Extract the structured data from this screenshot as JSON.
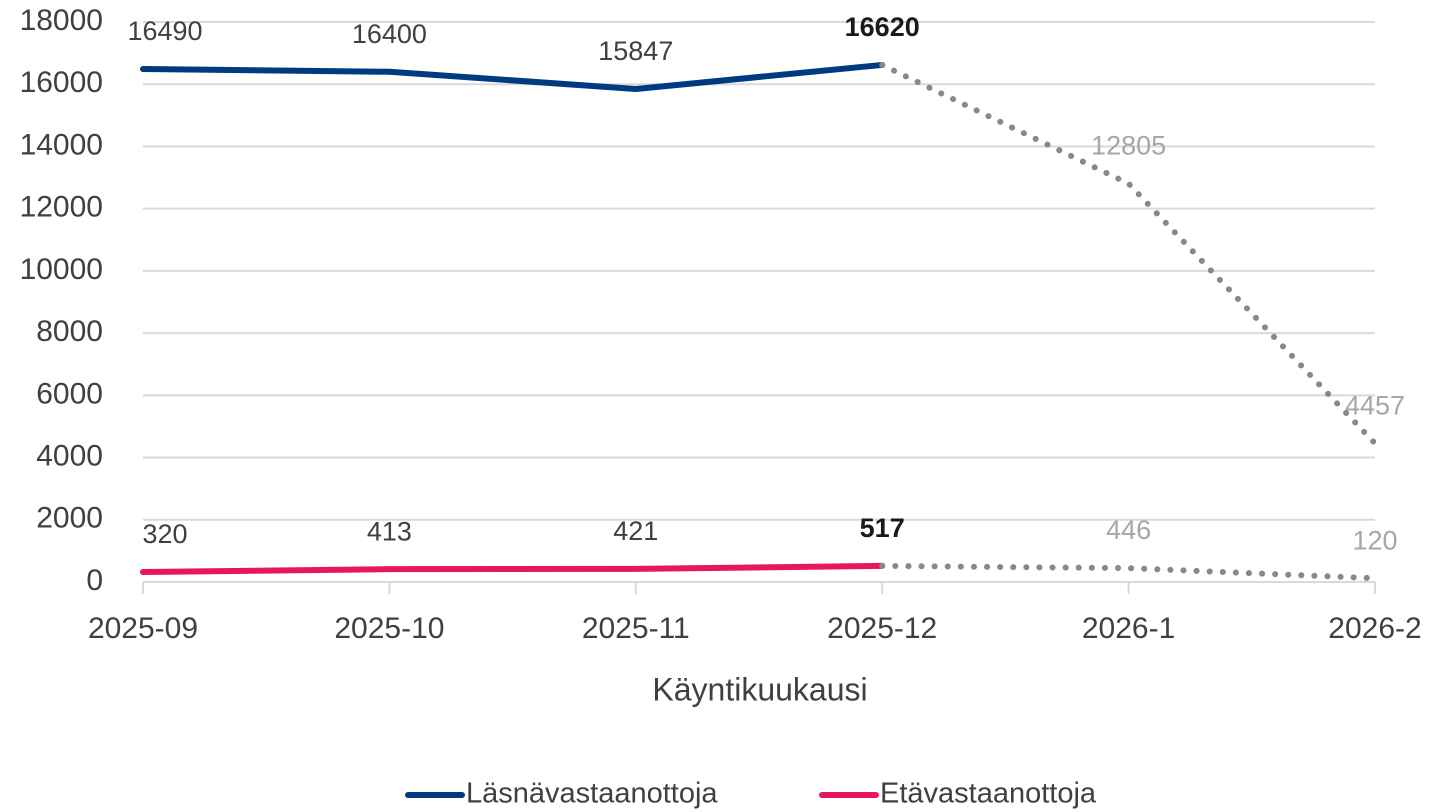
{
  "chart_data": {
    "type": "line",
    "x_label": "Käyntikuukausi",
    "categories": [
      "2025-09",
      "2025-10",
      "2025-11",
      "2025-12",
      "2026-1",
      "2026-2"
    ],
    "series": [
      {
        "name": "Läsnävastaanottoja",
        "color": "#003a80",
        "values": [
          16490,
          16400,
          15847,
          16620,
          12805,
          4457
        ]
      },
      {
        "name": "Etävastaanottoja",
        "color": "#e8175d",
        "values": [
          320,
          413,
          421,
          517,
          446,
          120
        ]
      }
    ],
    "projection": {
      "from_index": 3,
      "color": "#888888",
      "style": "dotted"
    },
    "ylim": [
      0,
      18000
    ],
    "yticks": [
      0,
      2000,
      4000,
      6000,
      8000,
      10000,
      12000,
      14000,
      16000,
      18000
    ],
    "grid": true,
    "legend": "bottom"
  }
}
